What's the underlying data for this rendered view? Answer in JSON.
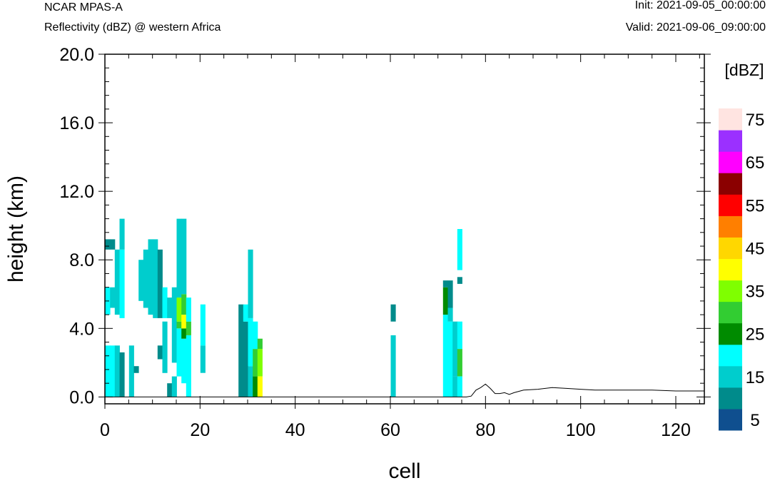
{
  "header": {
    "model": "NCAR MPAS-A",
    "field": "Reflectivity (dBZ) @ western Africa",
    "init": "Init: 2021-09-05_00:00:00",
    "valid": "Valid: 2021-09-06_09:00:00"
  },
  "chart_data": {
    "type": "heatmap",
    "xlabel": "cell",
    "ylabel": "height (km)",
    "xlim": [
      0,
      126
    ],
    "ylim": [
      -0.4,
      20.0
    ],
    "xticks": [
      0,
      20,
      40,
      60,
      80,
      100,
      120
    ],
    "xtick_labels": [
      "0",
      "20",
      "40",
      "60",
      "80",
      "100",
      "120"
    ],
    "yticks": [
      0,
      4,
      8,
      12,
      16,
      20
    ],
    "ytick_labels": [
      "0.0",
      "4.0",
      "8.0",
      "12.0",
      "16.0",
      "20.0"
    ],
    "colorbar": {
      "unit_label": "[dBZ]",
      "levels": [
        5,
        10,
        15,
        20,
        25,
        30,
        35,
        40,
        45,
        50,
        55,
        60,
        65,
        70,
        75
      ],
      "tick_labels": [
        "5",
        "15",
        "25",
        "35",
        "45",
        "55",
        "65",
        "75"
      ],
      "colors": [
        "#0f4f8f",
        "#008b8b",
        "#00cdcd",
        "#00ffff",
        "#008b00",
        "#32cd32",
        "#7fff00",
        "#ffff00",
        "#ffd700",
        "#ff7f00",
        "#ff0000",
        "#8b0000",
        "#ff00ff",
        "#9b30ff",
        "#ffe4e1"
      ]
    },
    "columns": [
      {
        "x": 0,
        "cells": [
          [
            0,
            3.0,
            3
          ],
          [
            4.8,
            6.4,
            3
          ],
          [
            8.6,
            9.2,
            1
          ]
        ]
      },
      {
        "x": 1,
        "cells": [
          [
            0,
            3.0,
            3
          ],
          [
            5.2,
            6.4,
            2
          ],
          [
            8.6,
            9.2,
            1
          ]
        ]
      },
      {
        "x": 2,
        "cells": [
          [
            0,
            3.0,
            2
          ],
          [
            4.8,
            8.6,
            2
          ]
        ]
      },
      {
        "x": 3,
        "cells": [
          [
            0,
            2.6,
            1
          ],
          [
            4.6,
            8.6,
            3
          ],
          [
            8.6,
            10.4,
            2
          ]
        ]
      },
      {
        "x": 5,
        "cells": [
          [
            0,
            3.0,
            2
          ]
        ]
      },
      {
        "x": 6,
        "cells": [
          [
            1.4,
            1.8,
            1
          ]
        ]
      },
      {
        "x": 7,
        "cells": [
          [
            5.6,
            8.0,
            2
          ]
        ]
      },
      {
        "x": 8,
        "cells": [
          [
            5.2,
            8.6,
            2
          ]
        ]
      },
      {
        "x": 9,
        "cells": [
          [
            4.8,
            9.2,
            2
          ]
        ]
      },
      {
        "x": 10,
        "cells": [
          [
            4.6,
            9.2,
            2
          ]
        ]
      },
      {
        "x": 11,
        "cells": [
          [
            2.2,
            3.0,
            1
          ],
          [
            4.6,
            8.6,
            1
          ]
        ]
      },
      {
        "x": 12,
        "cells": [
          [
            1.4,
            4.4,
            2
          ],
          [
            4.6,
            6.4,
            3
          ]
        ]
      },
      {
        "x": 13,
        "cells": [
          [
            0,
            0.8,
            1
          ],
          [
            4.6,
            5.8,
            2
          ]
        ]
      },
      {
        "x": 14,
        "cells": [
          [
            0,
            1.2,
            2
          ],
          [
            2.0,
            6.4,
            2
          ]
        ]
      },
      {
        "x": 15,
        "cells": [
          [
            1.2,
            4.0,
            3
          ],
          [
            4.0,
            4.4,
            5
          ],
          [
            4.4,
            5.8,
            6
          ],
          [
            5.8,
            10.4,
            2
          ]
        ]
      },
      {
        "x": 16,
        "cells": [
          [
            0.8,
            3.4,
            3
          ],
          [
            3.4,
            4.0,
            4
          ],
          [
            4.0,
            4.8,
            7
          ],
          [
            4.8,
            6.0,
            5
          ],
          [
            6.0,
            10.4,
            2
          ]
        ]
      },
      {
        "x": 17,
        "cells": [
          [
            0,
            3.6,
            3
          ],
          [
            3.6,
            4.4,
            5
          ],
          [
            4.4,
            5.8,
            3
          ]
        ]
      },
      {
        "x": 20,
        "cells": [
          [
            1.4,
            3.0,
            2
          ],
          [
            3.0,
            5.4,
            3
          ]
        ]
      },
      {
        "x": 28,
        "cells": [
          [
            0,
            5.4,
            1
          ]
        ]
      },
      {
        "x": 29,
        "cells": [
          [
            0,
            4.4,
            1
          ],
          [
            4.4,
            5.4,
            3
          ]
        ]
      },
      {
        "x": 30,
        "cells": [
          [
            0,
            1.8,
            2
          ],
          [
            1.8,
            4.6,
            3
          ],
          [
            4.6,
            8.6,
            2
          ]
        ]
      },
      {
        "x": 31,
        "cells": [
          [
            0,
            1.2,
            4
          ],
          [
            1.2,
            2.8,
            5
          ],
          [
            2.8,
            4.4,
            3
          ]
        ]
      },
      {
        "x": 32,
        "cells": [
          [
            0,
            1.2,
            7
          ],
          [
            1.2,
            2.8,
            6
          ],
          [
            2.8,
            3.4,
            5
          ]
        ]
      },
      {
        "x": 60,
        "cells": [
          [
            0,
            3.6,
            2
          ],
          [
            4.4,
            5.4,
            1
          ]
        ]
      },
      {
        "x": 71,
        "cells": [
          [
            0,
            4.8,
            3
          ],
          [
            4.8,
            6.4,
            4
          ],
          [
            6.4,
            6.8,
            1
          ]
        ]
      },
      {
        "x": 72,
        "cells": [
          [
            0,
            4.4,
            3
          ],
          [
            4.4,
            5.2,
            2
          ],
          [
            5.2,
            6.8,
            1
          ]
        ]
      },
      {
        "x": 73,
        "cells": [
          [
            0,
            1.2,
            2
          ],
          [
            1.2,
            4.4,
            2
          ]
        ]
      },
      {
        "x": 74,
        "cells": [
          [
            0,
            1.2,
            3
          ],
          [
            1.2,
            2.8,
            5
          ],
          [
            2.8,
            4.4,
            3
          ],
          [
            6.6,
            7.0,
            1
          ],
          [
            7.4,
            9.8,
            3
          ]
        ]
      }
    ],
    "terrain": [
      [
        0,
        0
      ],
      [
        76,
        0
      ],
      [
        77,
        0.05
      ],
      [
        78,
        0.4
      ],
      [
        79,
        0.55
      ],
      [
        80,
        0.75
      ],
      [
        81,
        0.5
      ],
      [
        82,
        0.2
      ],
      [
        83,
        0.2
      ],
      [
        84,
        0.25
      ],
      [
        85,
        0.15
      ],
      [
        86,
        0.25
      ],
      [
        88,
        0.4
      ],
      [
        91,
        0.45
      ],
      [
        94,
        0.55
      ],
      [
        97,
        0.5
      ],
      [
        100,
        0.45
      ],
      [
        103,
        0.4
      ],
      [
        110,
        0.4
      ],
      [
        115,
        0.4
      ],
      [
        120,
        0.35
      ],
      [
        126,
        0.35
      ]
    ]
  }
}
